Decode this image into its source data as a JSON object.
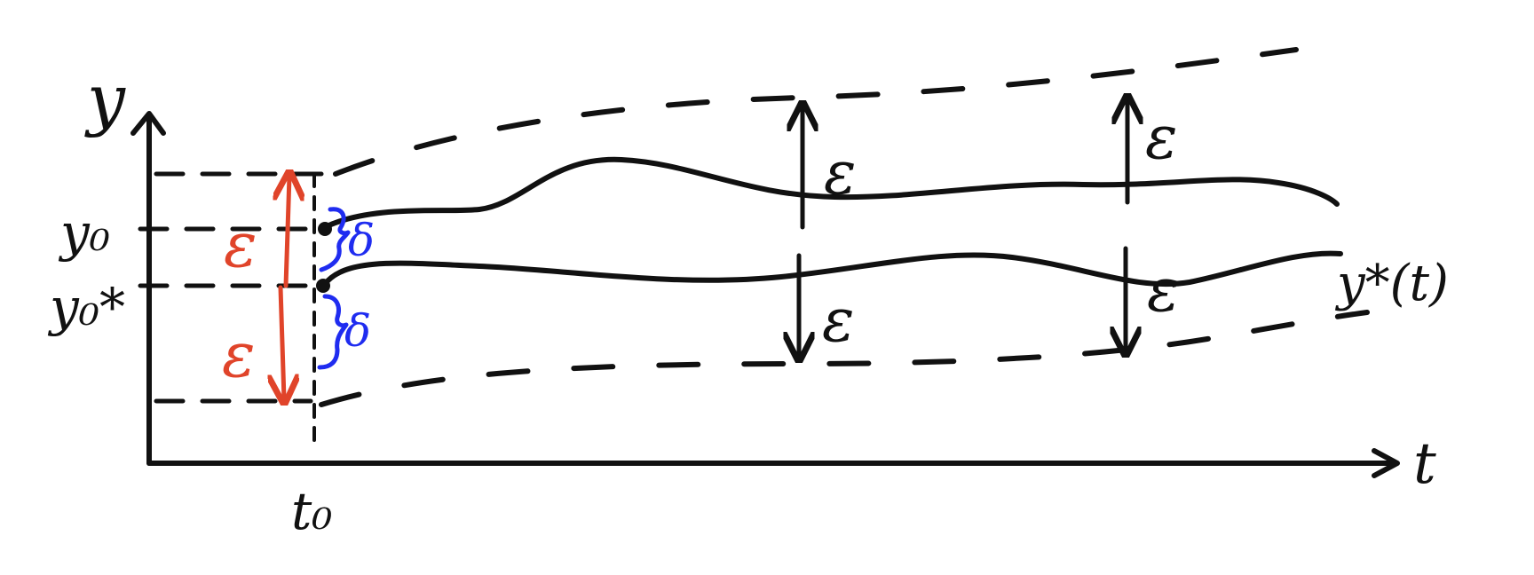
{
  "colors": {
    "ink": "#111111",
    "epsilon_red": "#e0442a",
    "delta_blue": "#1f2cf0",
    "background": "#ffffff"
  },
  "axes": {
    "x_label": "t",
    "y_label": "y"
  },
  "ticks": {
    "t0": "t₀",
    "y0": "y₀",
    "y0_star": "y₀*"
  },
  "curve_label": "y*(t)",
  "labels": {
    "epsilon": "ε",
    "delta": "δ"
  }
}
